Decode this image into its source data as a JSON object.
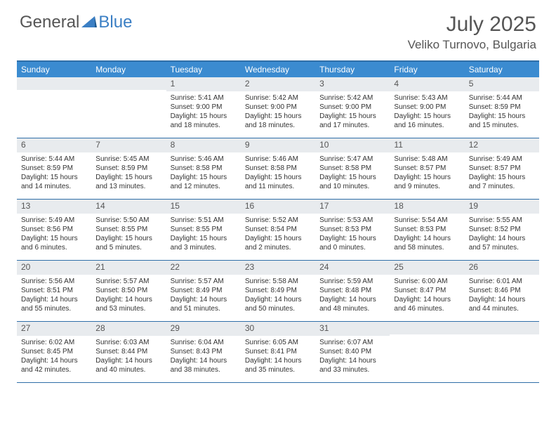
{
  "logo": {
    "part1": "General",
    "part2": "Blue"
  },
  "title": "July 2025",
  "location": "Veliko Turnovo, Bulgaria",
  "colors": {
    "header_bg": "#3b8bd0",
    "border": "#2f6fa8",
    "daynum_bg": "#e8ebee",
    "text": "#333333",
    "muted": "#555555"
  },
  "day_headers": [
    "Sunday",
    "Monday",
    "Tuesday",
    "Wednesday",
    "Thursday",
    "Friday",
    "Saturday"
  ],
  "weeks": [
    [
      null,
      null,
      {
        "n": "1",
        "sr": "5:41 AM",
        "ss": "9:00 PM",
        "dl": "15 hours and 18 minutes."
      },
      {
        "n": "2",
        "sr": "5:42 AM",
        "ss": "9:00 PM",
        "dl": "15 hours and 18 minutes."
      },
      {
        "n": "3",
        "sr": "5:42 AM",
        "ss": "9:00 PM",
        "dl": "15 hours and 17 minutes."
      },
      {
        "n": "4",
        "sr": "5:43 AM",
        "ss": "9:00 PM",
        "dl": "15 hours and 16 minutes."
      },
      {
        "n": "5",
        "sr": "5:44 AM",
        "ss": "8:59 PM",
        "dl": "15 hours and 15 minutes."
      }
    ],
    [
      {
        "n": "6",
        "sr": "5:44 AM",
        "ss": "8:59 PM",
        "dl": "15 hours and 14 minutes."
      },
      {
        "n": "7",
        "sr": "5:45 AM",
        "ss": "8:59 PM",
        "dl": "15 hours and 13 minutes."
      },
      {
        "n": "8",
        "sr": "5:46 AM",
        "ss": "8:58 PM",
        "dl": "15 hours and 12 minutes."
      },
      {
        "n": "9",
        "sr": "5:46 AM",
        "ss": "8:58 PM",
        "dl": "15 hours and 11 minutes."
      },
      {
        "n": "10",
        "sr": "5:47 AM",
        "ss": "8:58 PM",
        "dl": "15 hours and 10 minutes."
      },
      {
        "n": "11",
        "sr": "5:48 AM",
        "ss": "8:57 PM",
        "dl": "15 hours and 9 minutes."
      },
      {
        "n": "12",
        "sr": "5:49 AM",
        "ss": "8:57 PM",
        "dl": "15 hours and 7 minutes."
      }
    ],
    [
      {
        "n": "13",
        "sr": "5:49 AM",
        "ss": "8:56 PM",
        "dl": "15 hours and 6 minutes."
      },
      {
        "n": "14",
        "sr": "5:50 AM",
        "ss": "8:55 PM",
        "dl": "15 hours and 5 minutes."
      },
      {
        "n": "15",
        "sr": "5:51 AM",
        "ss": "8:55 PM",
        "dl": "15 hours and 3 minutes."
      },
      {
        "n": "16",
        "sr": "5:52 AM",
        "ss": "8:54 PM",
        "dl": "15 hours and 2 minutes."
      },
      {
        "n": "17",
        "sr": "5:53 AM",
        "ss": "8:53 PM",
        "dl": "15 hours and 0 minutes."
      },
      {
        "n": "18",
        "sr": "5:54 AM",
        "ss": "8:53 PM",
        "dl": "14 hours and 58 minutes."
      },
      {
        "n": "19",
        "sr": "5:55 AM",
        "ss": "8:52 PM",
        "dl": "14 hours and 57 minutes."
      }
    ],
    [
      {
        "n": "20",
        "sr": "5:56 AM",
        "ss": "8:51 PM",
        "dl": "14 hours and 55 minutes."
      },
      {
        "n": "21",
        "sr": "5:57 AM",
        "ss": "8:50 PM",
        "dl": "14 hours and 53 minutes."
      },
      {
        "n": "22",
        "sr": "5:57 AM",
        "ss": "8:49 PM",
        "dl": "14 hours and 51 minutes."
      },
      {
        "n": "23",
        "sr": "5:58 AM",
        "ss": "8:49 PM",
        "dl": "14 hours and 50 minutes."
      },
      {
        "n": "24",
        "sr": "5:59 AM",
        "ss": "8:48 PM",
        "dl": "14 hours and 48 minutes."
      },
      {
        "n": "25",
        "sr": "6:00 AM",
        "ss": "8:47 PM",
        "dl": "14 hours and 46 minutes."
      },
      {
        "n": "26",
        "sr": "6:01 AM",
        "ss": "8:46 PM",
        "dl": "14 hours and 44 minutes."
      }
    ],
    [
      {
        "n": "27",
        "sr": "6:02 AM",
        "ss": "8:45 PM",
        "dl": "14 hours and 42 minutes."
      },
      {
        "n": "28",
        "sr": "6:03 AM",
        "ss": "8:44 PM",
        "dl": "14 hours and 40 minutes."
      },
      {
        "n": "29",
        "sr": "6:04 AM",
        "ss": "8:43 PM",
        "dl": "14 hours and 38 minutes."
      },
      {
        "n": "30",
        "sr": "6:05 AM",
        "ss": "8:41 PM",
        "dl": "14 hours and 35 minutes."
      },
      {
        "n": "31",
        "sr": "6:07 AM",
        "ss": "8:40 PM",
        "dl": "14 hours and 33 minutes."
      },
      null,
      null
    ]
  ],
  "labels": {
    "sunrise": "Sunrise: ",
    "sunset": "Sunset: ",
    "daylight": "Daylight: "
  }
}
